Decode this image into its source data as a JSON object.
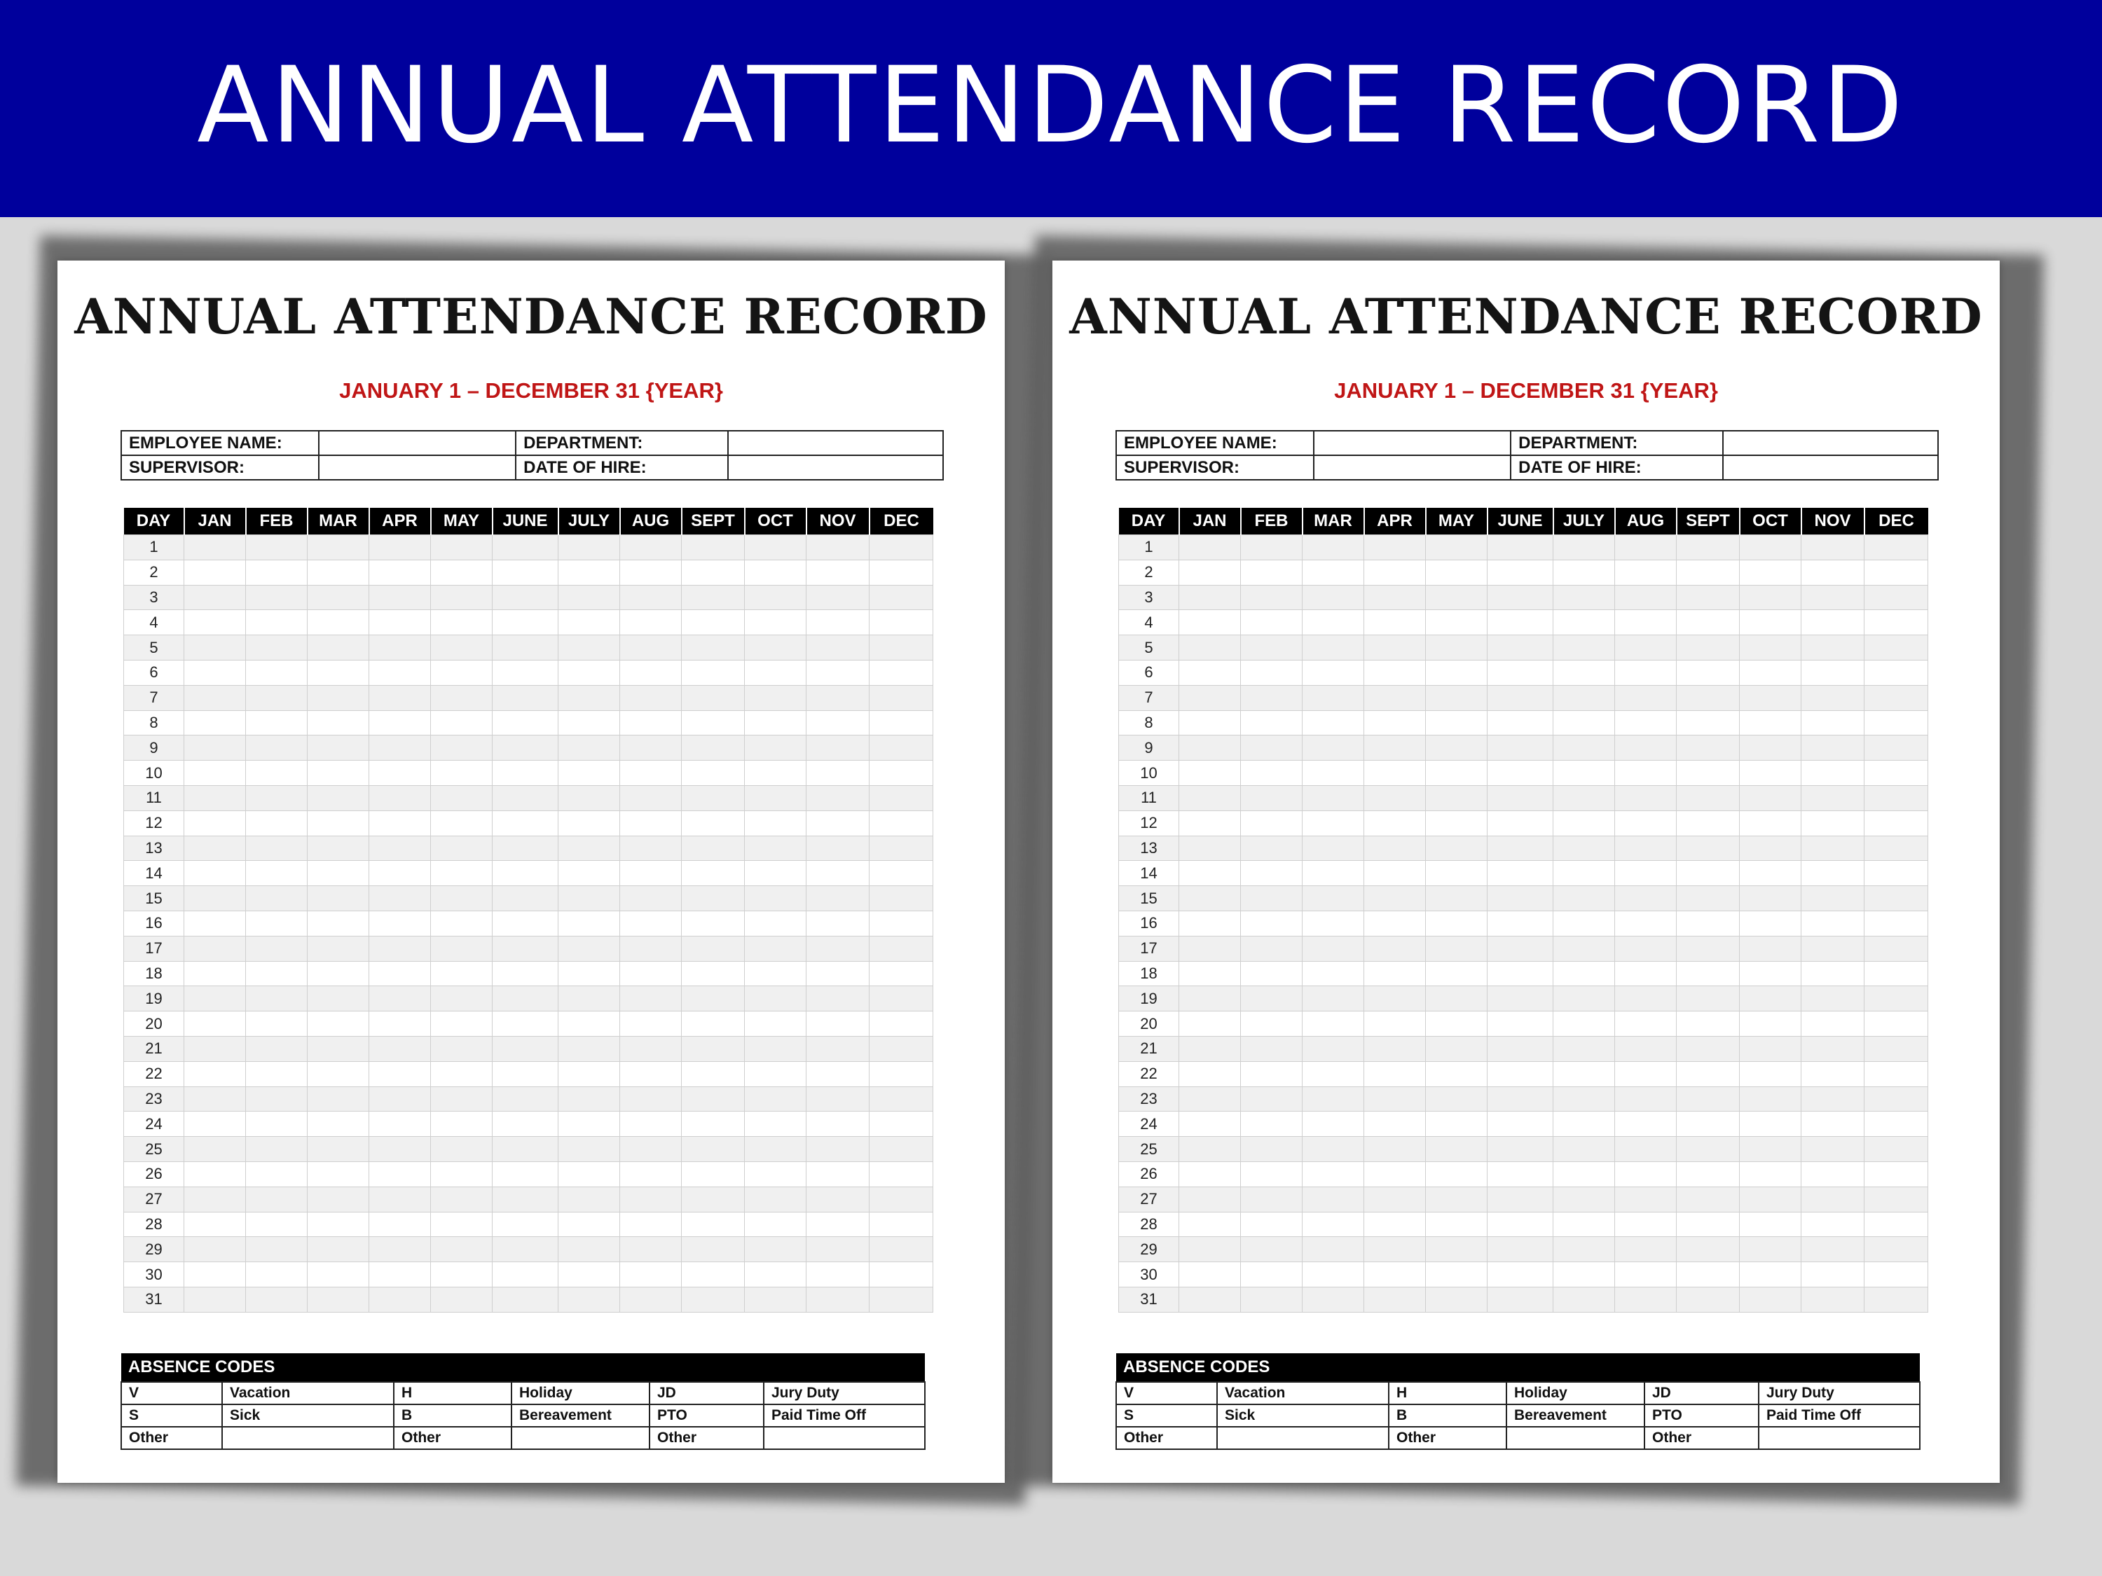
{
  "banner": {
    "title": "ANNUAL ATTENDANCE RECORD"
  },
  "sheet": {
    "title": "ANNUAL ATTENDANCE RECORD",
    "subtitle": "JANUARY 1 – DECEMBER 31 {YEAR}",
    "info": {
      "employee_name": "EMPLOYEE NAME:",
      "department": "DEPARTMENT:",
      "supervisor": "SUPERVISOR:",
      "date_of_hire": "DATE OF HIRE:"
    },
    "columns": [
      "DAY",
      "JAN",
      "FEB",
      "MAR",
      "APR",
      "MAY",
      "JUNE",
      "JULY",
      "AUG",
      "SEPT",
      "OCT",
      "NOV",
      "DEC"
    ],
    "days": [
      "1",
      "2",
      "3",
      "4",
      "5",
      "6",
      "7",
      "8",
      "9",
      "10",
      "11",
      "12",
      "13",
      "14",
      "15",
      "16",
      "17",
      "18",
      "19",
      "20",
      "21",
      "22",
      "23",
      "24",
      "25",
      "26",
      "27",
      "28",
      "29",
      "30",
      "31"
    ],
    "absence": {
      "header": "ABSENCE CODES",
      "rows": [
        [
          "V",
          "Vacation",
          "H",
          "Holiday",
          "JD",
          "Jury Duty"
        ],
        [
          "S",
          "Sick",
          "B",
          "Bereavement",
          "PTO",
          "Paid Time Off"
        ],
        [
          "Other",
          "",
          "Other",
          "",
          "Other",
          ""
        ]
      ]
    }
  }
}
